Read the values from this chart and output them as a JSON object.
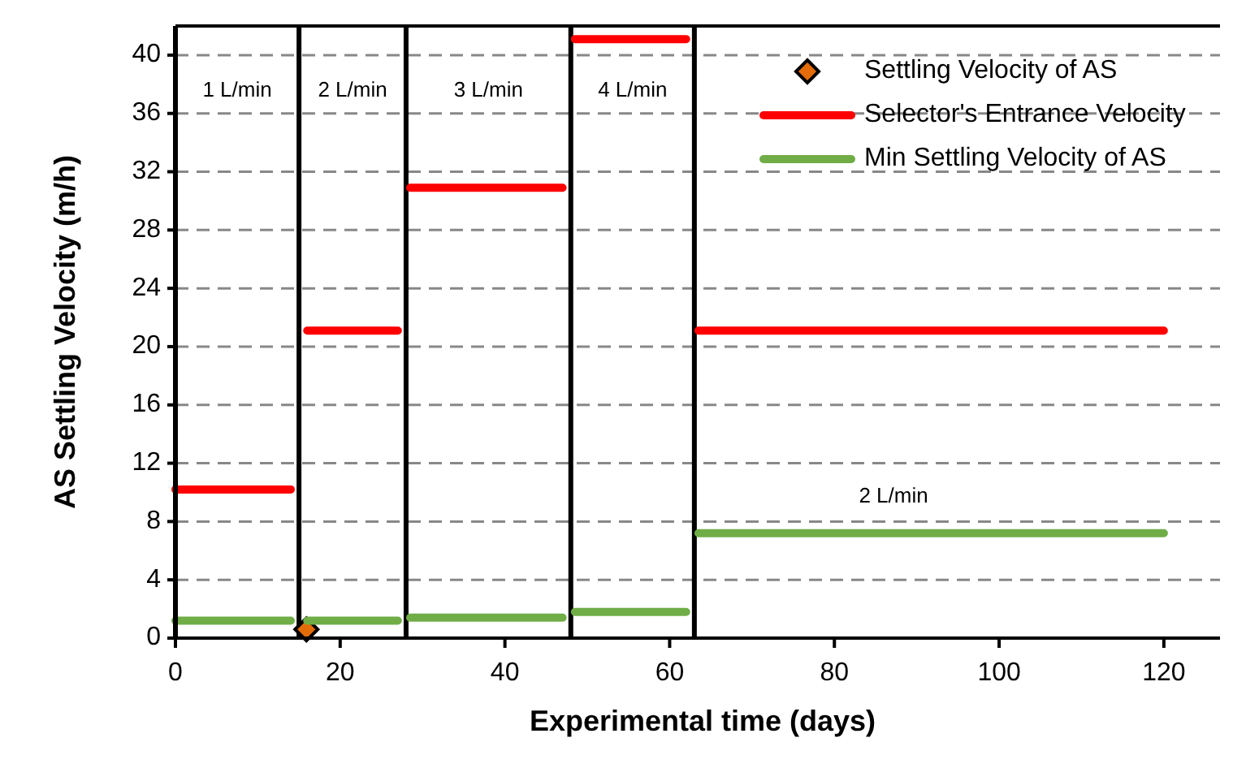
{
  "chart_data": {
    "type": "line",
    "xlabel": "Experimental time (days)",
    "ylabel": "AS Settling Velocity (m/h)",
    "xlim": [
      0,
      128
    ],
    "xticks": [
      0,
      20,
      40,
      60,
      80,
      100,
      120
    ],
    "ylim": [
      0,
      42
    ],
    "yticks": [
      0,
      4,
      8,
      12,
      16,
      20,
      24,
      28,
      32,
      36,
      40
    ],
    "grid": "y",
    "legend": "top right",
    "series": [
      {
        "name": "Settling Velocity of AS",
        "type": "scatter",
        "marker": "diamond",
        "color": "#e36c09",
        "x": [
          15.9
        ],
        "values": [
          0.6
        ]
      },
      {
        "name": "Selector's Entrance Velocity",
        "marker": "none",
        "color": "#ff0000",
        "x": [
          0,
          14,
          15,
          16,
          27,
          28,
          28.5,
          47,
          48,
          48.5,
          62,
          63,
          63.5,
          120
        ],
        "values": [
          10.2,
          10.2,
          null,
          21.1,
          21.1,
          null,
          30.9,
          30.9,
          null,
          41.1,
          41.1,
          null,
          21.1,
          21.1
        ]
      },
      {
        "name": "Min Settling Velocity of AS",
        "marker": "none",
        "color": "#70ad47",
        "x": [
          0,
          14,
          15,
          16,
          27,
          28,
          28.5,
          47,
          48,
          48.5,
          62,
          63,
          63.5,
          120
        ],
        "values": [
          1.2,
          1.2,
          null,
          1.2,
          1.2,
          null,
          1.4,
          1.4,
          null,
          1.8,
          1.8,
          null,
          7.2,
          7.2
        ]
      }
    ],
    "ref_lines": [
      {
        "axis": "x",
        "value": 15,
        "color": "#000000"
      },
      {
        "axis": "x",
        "value": 28,
        "color": "#000000"
      },
      {
        "axis": "x",
        "value": 48,
        "color": "#000000"
      },
      {
        "axis": "x",
        "value": 63,
        "color": "#000000"
      }
    ],
    "annotations": [
      "1 L/min",
      "2 L/min",
      "3 L/min",
      "4 L/min",
      "2 L/min"
    ]
  }
}
